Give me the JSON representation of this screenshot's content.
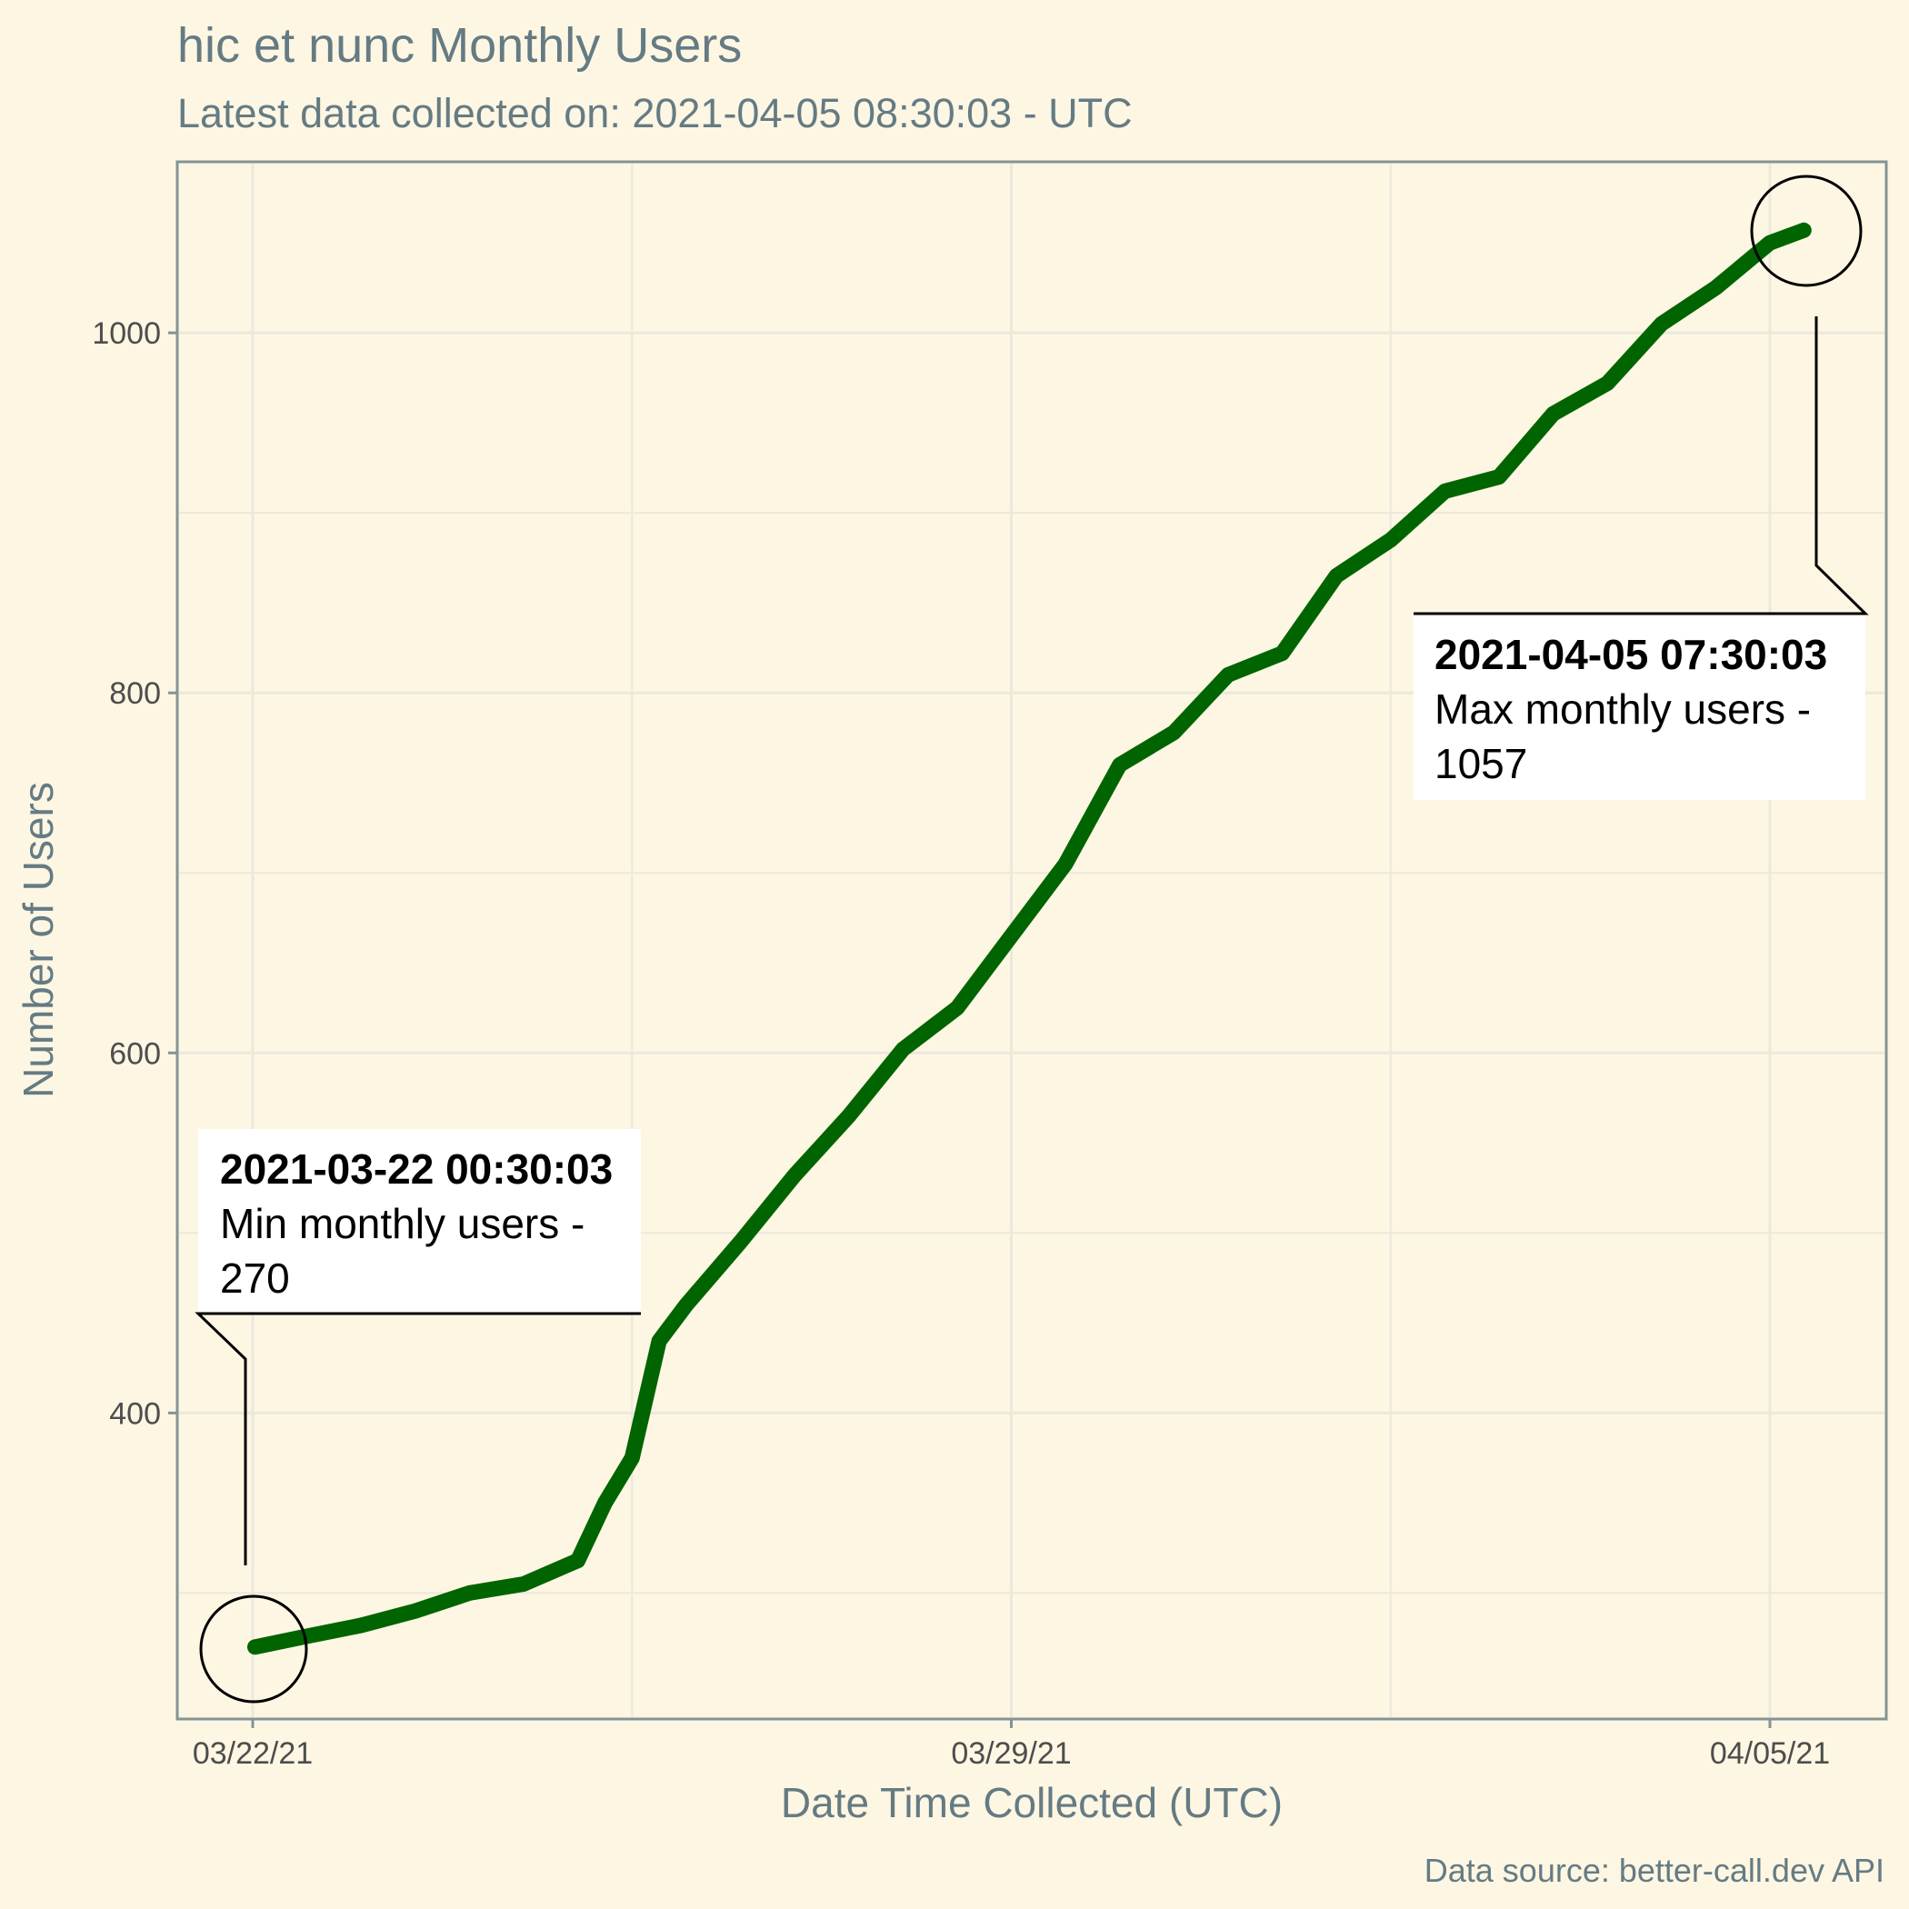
{
  "chart_data": {
    "type": "line",
    "title": "hic et nunc Monthly Users",
    "subtitle": "Latest data collected on: 2021-04-05 08:30:03  - UTC",
    "xlabel": "Date Time Collected (UTC)",
    "ylabel": "Number of Users",
    "caption": "Data source: better-call.dev API",
    "x_tick_labels": [
      "03/22/21",
      "03/29/21",
      "04/05/21"
    ],
    "y_ticks": [
      400,
      600,
      800,
      1000
    ],
    "ylim": [
      230,
      1095
    ],
    "grid": true,
    "colors": {
      "line": "#006400",
      "background": "#fdf6e3",
      "panel_border": "#839496"
    },
    "series": [
      {
        "x": [
          "2021-03-22 00:30",
          "2021-03-22 12:00",
          "2021-03-23 00:00",
          "2021-03-23 12:00",
          "2021-03-24 00:00",
          "2021-03-24 12:00",
          "2021-03-25 00:00",
          "2021-03-25 06:00",
          "2021-03-25 12:00",
          "2021-03-25 18:00",
          "2021-03-26 00:00",
          "2021-03-26 12:00",
          "2021-03-27 00:00",
          "2021-03-27 12:00",
          "2021-03-28 00:00",
          "2021-03-28 12:00",
          "2021-03-29 00:00",
          "2021-03-29 12:00",
          "2021-03-30 00:00",
          "2021-03-30 12:00",
          "2021-03-31 00:00",
          "2021-03-31 12:00",
          "2021-04-01 00:00",
          "2021-04-01 12:00",
          "2021-04-02 00:00",
          "2021-04-02 12:00",
          "2021-04-03 00:00",
          "2021-04-03 12:00",
          "2021-04-04 00:00",
          "2021-04-04 12:00",
          "2021-04-05 00:00",
          "2021-04-05 07:30"
        ],
        "y": [
          270,
          276,
          282,
          290,
          300,
          305,
          318,
          350,
          375,
          440,
          460,
          495,
          532,
          565,
          602,
          625,
          665,
          705,
          760,
          778,
          810,
          822,
          865,
          885,
          912,
          920,
          955,
          972,
          1005,
          1025,
          1050,
          1057
        ]
      }
    ],
    "annotations": [
      {
        "date": "2021-03-22 00:30:03",
        "label": "Min monthly users -",
        "value": "270"
      },
      {
        "date": "2021-04-05 07:30:03",
        "label": "Max monthly users -",
        "value": "1057"
      }
    ]
  }
}
